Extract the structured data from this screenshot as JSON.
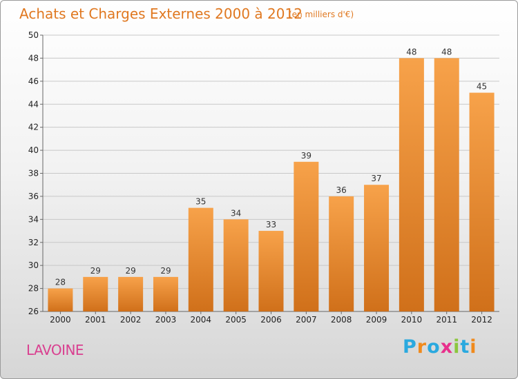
{
  "header": {
    "title": "Achats et Charges Externes 2000 à 2012",
    "subtitle": "(en milliers d'€)"
  },
  "footer": {
    "commune": "LAVOINE",
    "logo_text": "Proxiti",
    "logo_letters": [
      {
        "char": "P",
        "color": "#2aa9df"
      },
      {
        "char": "r",
        "color": "#f08a1c"
      },
      {
        "char": "o",
        "color": "#2aa9df"
      },
      {
        "char": "x",
        "color": "#e8308c"
      },
      {
        "char": "i",
        "color": "#8cc63e"
      },
      {
        "char": "t",
        "color": "#2aa9df"
      },
      {
        "char": "i",
        "color": "#f08a1c"
      }
    ]
  },
  "chart_data": {
    "type": "bar",
    "title": "Achats et Charges Externes 2000 à 2012",
    "subtitle": "(en milliers d'€)",
    "xlabel": "",
    "ylabel": "",
    "categories": [
      "2000",
      "2001",
      "2002",
      "2003",
      "2004",
      "2005",
      "2006",
      "2007",
      "2008",
      "2009",
      "2010",
      "2011",
      "2012"
    ],
    "values": [
      28,
      29,
      29,
      29,
      35,
      34,
      33,
      39,
      36,
      37,
      48,
      48,
      45
    ],
    "ylim": [
      26,
      50
    ],
    "yticks": [
      26,
      28,
      30,
      32,
      34,
      36,
      38,
      40,
      42,
      44,
      46,
      48,
      50
    ],
    "grid": true,
    "bar_color_top": "#f7a24a",
    "bar_color_bottom": "#d0701a"
  }
}
